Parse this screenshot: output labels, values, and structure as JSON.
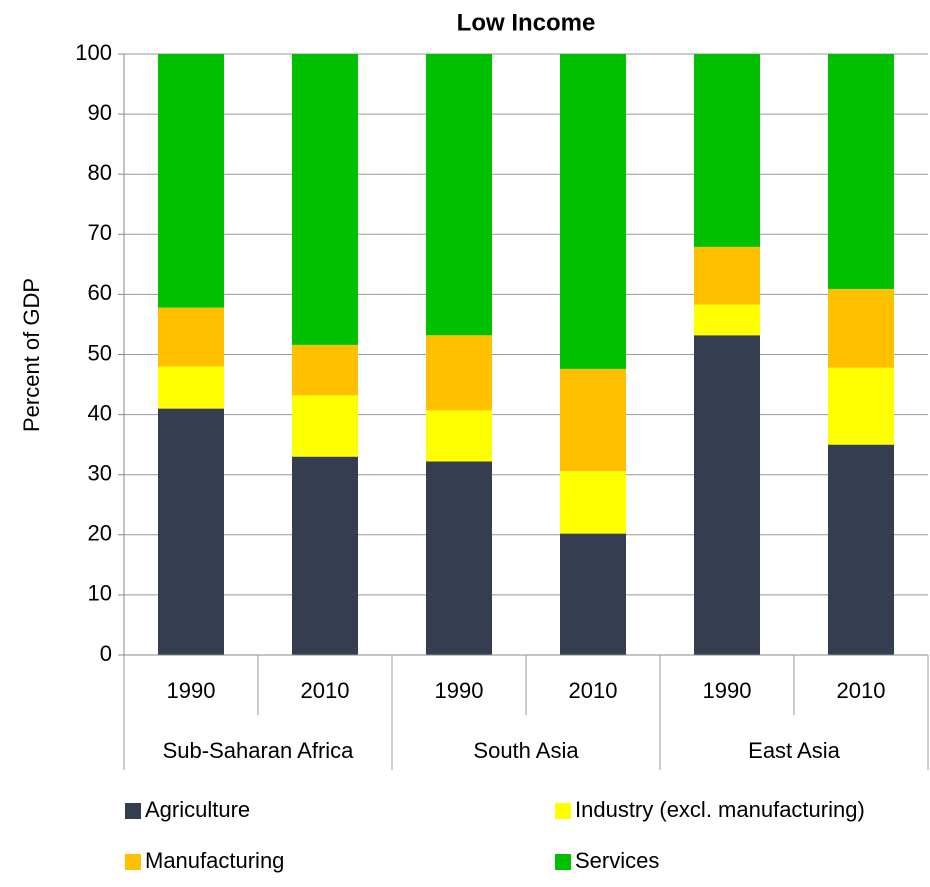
{
  "chart_data": {
    "type": "stacked_bar",
    "title": "Low Income",
    "y_label": "Percent of GDP",
    "categories": [
      "1990",
      "2010",
      "1990",
      "2010",
      "1990",
      "2010"
    ],
    "groups": [
      "Sub-Saharan Africa",
      "South Asia",
      "East Asia"
    ],
    "series": [
      {
        "name": "Agriculture",
        "color": "#343e50",
        "values": [
          41,
          33,
          32.2,
          20.2,
          53.2,
          35
        ]
      },
      {
        "name": "Industry (excl. manufacturing)",
        "color": "#ffff00",
        "values": [
          7,
          10.2,
          8.5,
          10.4,
          5.1,
          12.8
        ]
      },
      {
        "name": "Manufacturing",
        "color": "#ffc000",
        "values": [
          9.8,
          8.4,
          12.5,
          17,
          9.6,
          13.1
        ]
      },
      {
        "name": "Services",
        "color": "#00c000",
        "values": [
          42.2,
          48.4,
          46.8,
          52.4,
          32.1,
          39.1
        ]
      }
    ],
    "ylim": [
      0,
      100
    ],
    "yticks": [
      0,
      10,
      20,
      30,
      40,
      50,
      60,
      70,
      80,
      90,
      100
    ],
    "grid": true,
    "legend": "bottom"
  }
}
